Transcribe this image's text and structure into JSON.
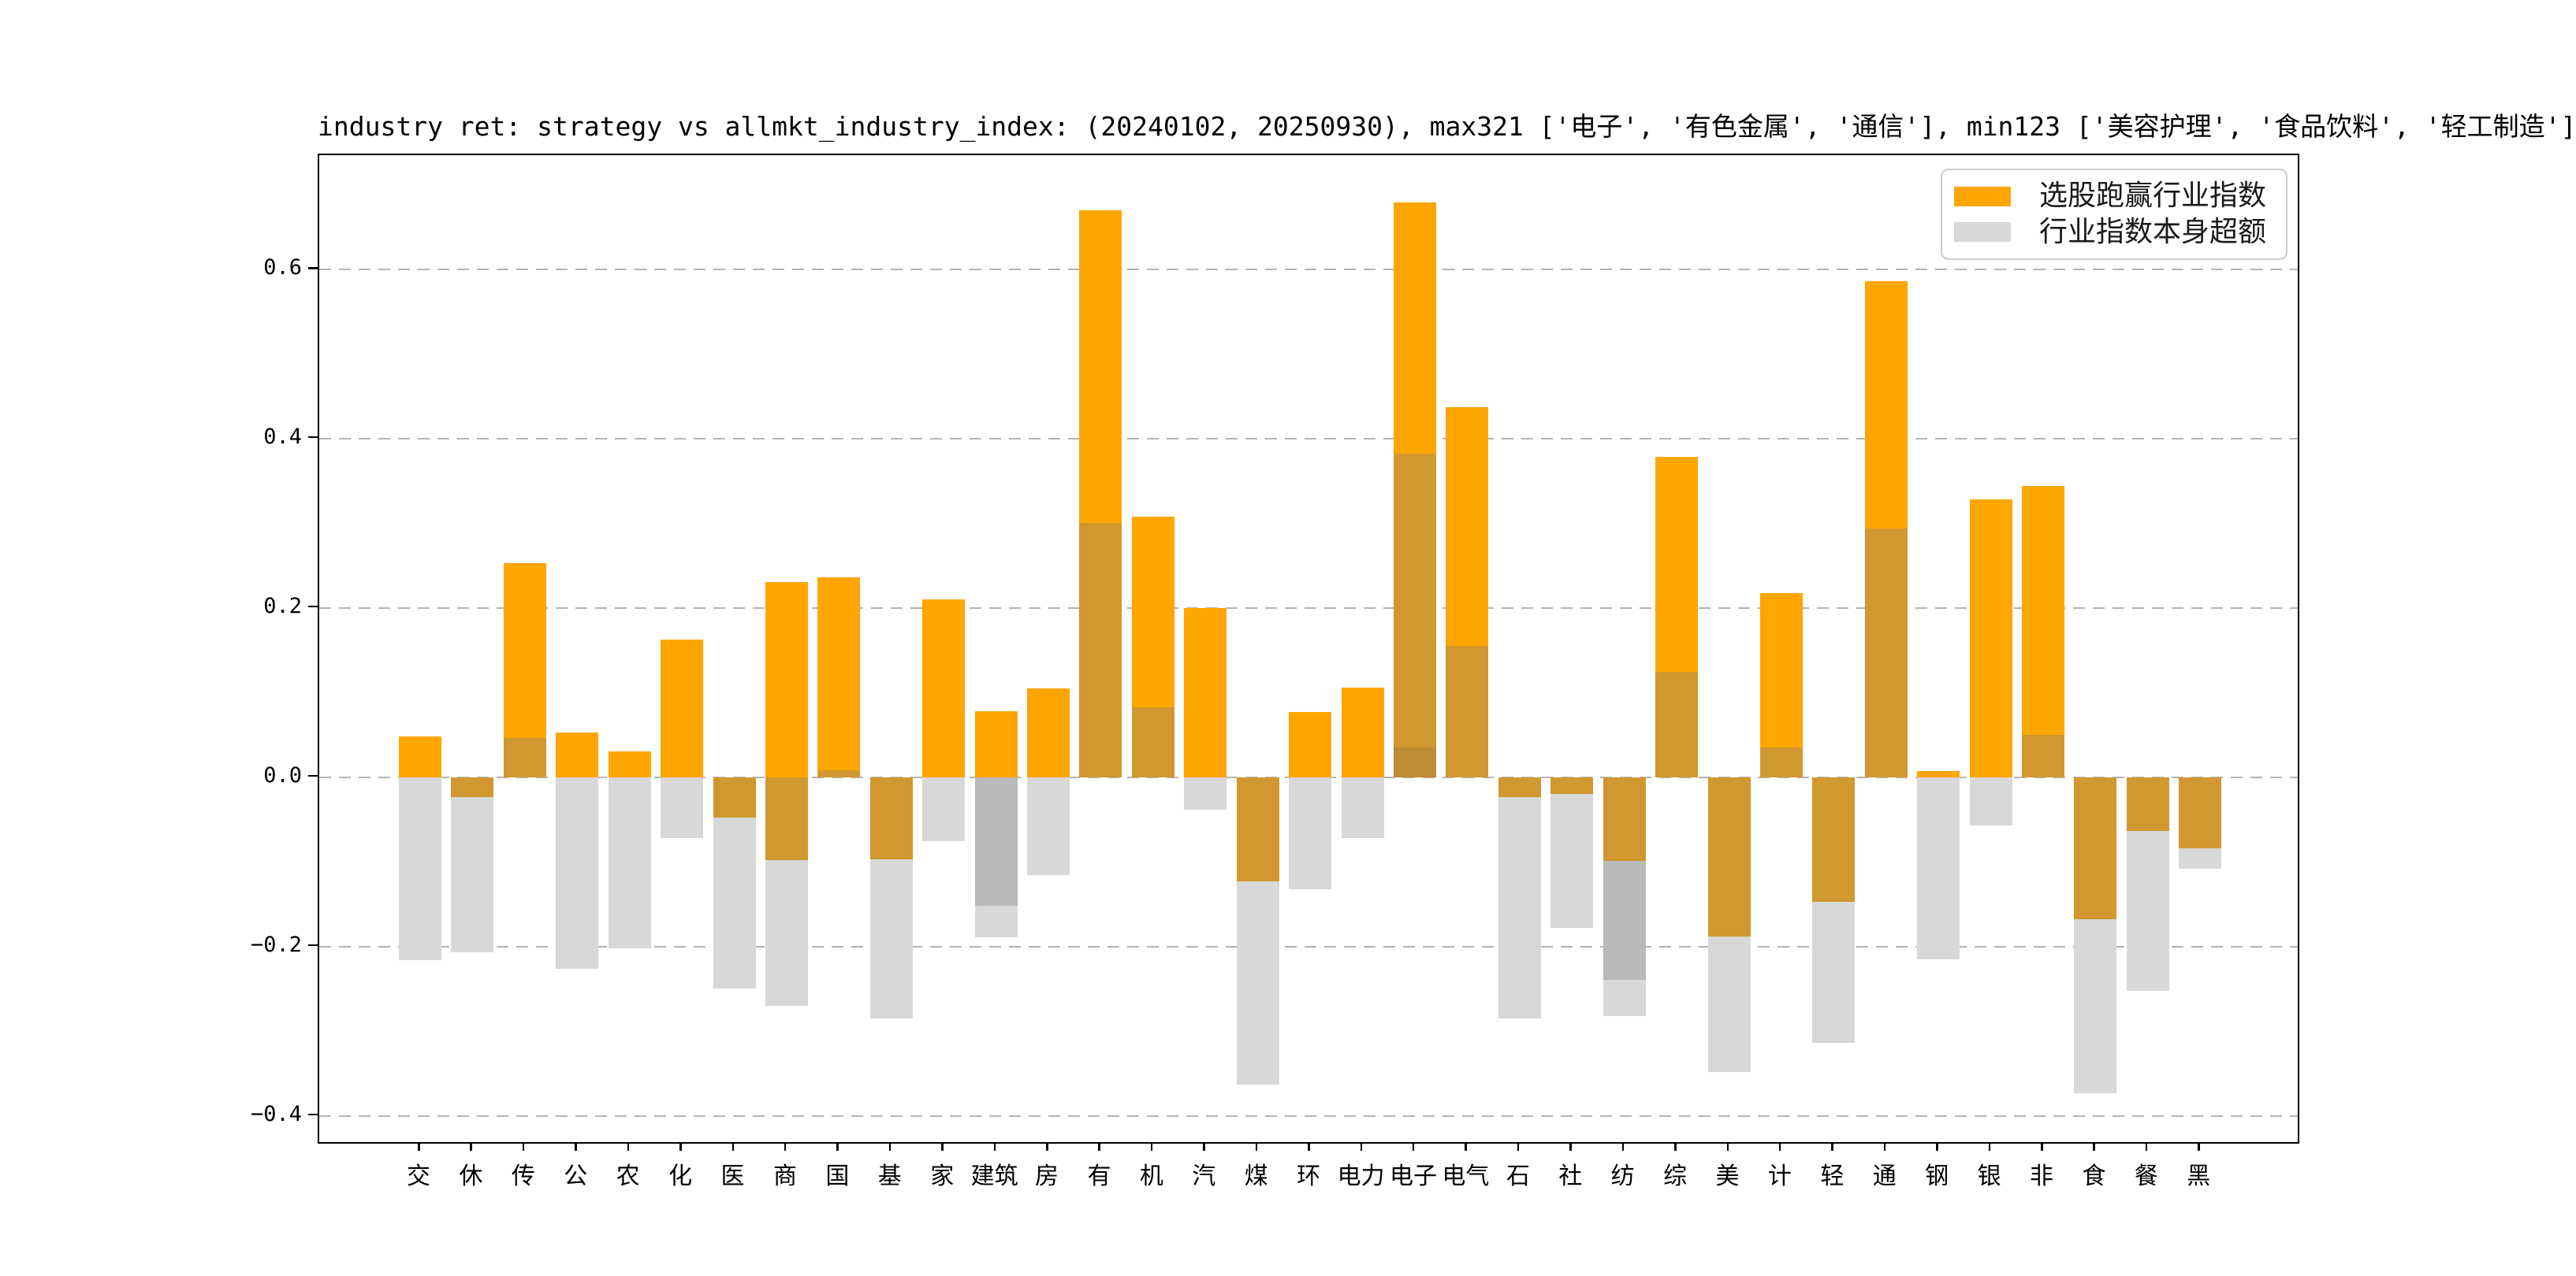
{
  "title": "industry ret: strategy vs allmkt_industry_index: (20240102, 20250930), max321 ['电子', '有色金属', '通信'], min123 ['美容护理', '食品饮料', '轻工制造']",
  "legend": {
    "items": [
      {
        "label": "选股跑赢行业指数",
        "color_key": "orange"
      },
      {
        "label": "行业指数本身超额",
        "color_key": "gray"
      }
    ]
  },
  "colors": {
    "orange": "#FFA500",
    "blend": "#D0982E",
    "blend_dark": "#BE8C33",
    "gray": "#D8D8D8",
    "gray_dark": "#B9B9B9",
    "grid": "#b4b4b4",
    "text": "#000000"
  },
  "axes": {
    "y_ticks": [
      {
        "label": "0.6",
        "value": 0.6
      },
      {
        "label": "0.4",
        "value": 0.4
      },
      {
        "label": "0.2",
        "value": 0.2
      },
      {
        "label": "0.0",
        "value": 0.0
      },
      {
        "label": "−0.2",
        "value": -0.2
      },
      {
        "label": "−0.4",
        "value": -0.4
      }
    ],
    "grid_style": "dashed"
  },
  "chart_data": {
    "type": "bar",
    "title": "industry ret: strategy vs allmkt_industry_index: (20240102, 20250930), max321 ['电子', '有色金属', '通信'], min123 ['美容护理', '食品饮料', '轻工制造']",
    "xlabel": "",
    "ylabel": "",
    "ylim": [
      -0.431,
      0.735
    ],
    "legend_position": "upper right",
    "grid": true,
    "categories": [
      "交",
      "休",
      "传",
      "公",
      "农",
      "化",
      "医",
      "商",
      "国",
      "基",
      "家",
      "建筑",
      "房",
      "有",
      "机",
      "汽",
      "煤",
      "环",
      "电力",
      "电子",
      "电气",
      "石",
      "社",
      "纺",
      "综",
      "美",
      "计",
      "轻",
      "通",
      "钢",
      "银",
      "非",
      "食",
      "餐",
      "黑"
    ],
    "series": [
      {
        "name": "选股跑赢行业指数",
        "values": [
          0.048,
          -0.023,
          0.253,
          0.053,
          0.031,
          0.163,
          -0.048,
          0.231,
          0.236,
          -0.097,
          0.21,
          0.078,
          0.105,
          0.67,
          0.308,
          0.2,
          -0.123,
          0.077,
          0.106,
          0.679,
          0.437,
          -0.023,
          -0.02,
          -0.099,
          0.379,
          -0.188,
          0.218,
          -0.147,
          0.586,
          0.007,
          0.328,
          0.344,
          -0.168,
          -0.063,
          -0.084
        ]
      },
      {
        "name": "行业指数本身超额",
        "values": [
          -0.216,
          -0.207,
          0.046,
          -0.226,
          -0.202,
          -0.072,
          -0.25,
          -0.27,
          0.008,
          -0.285,
          -0.076,
          -0.189,
          -0.116,
          0.3,
          0.083,
          -0.038,
          -0.363,
          -0.132,
          -0.072,
          0.382,
          0.155,
          -0.285,
          -0.178,
          -0.282,
          0.125,
          -0.348,
          0.035,
          -0.314,
          0.294,
          -0.215,
          -0.057,
          0.05,
          -0.373,
          -0.252,
          -0.108
        ]
      }
    ],
    "max3_note": "max321 ['电子', '有色金属', '通信']",
    "min3_note": "min123 ['美容护理', '食品饮料', '轻工制造']",
    "segments": [
      [
        {
          "v0": 0,
          "v1": 0.048,
          "c": "orange"
        },
        {
          "v0": -0.216,
          "v1": 0,
          "c": "gray"
        }
      ],
      [
        {
          "v0": -0.023,
          "v1": 0,
          "c": "blend"
        },
        {
          "v0": -0.207,
          "v1": -0.023,
          "c": "gray"
        }
      ],
      [
        {
          "v0": 0.046,
          "v1": 0.253,
          "c": "orange"
        },
        {
          "v0": 0,
          "v1": 0.046,
          "c": "blend"
        }
      ],
      [
        {
          "v0": 0,
          "v1": 0.053,
          "c": "orange"
        },
        {
          "v0": -0.226,
          "v1": 0,
          "c": "gray"
        }
      ],
      [
        {
          "v0": 0,
          "v1": 0.031,
          "c": "orange"
        },
        {
          "v0": -0.202,
          "v1": 0,
          "c": "gray"
        }
      ],
      [
        {
          "v0": 0,
          "v1": 0.163,
          "c": "orange"
        },
        {
          "v0": -0.072,
          "v1": 0,
          "c": "gray"
        }
      ],
      [
        {
          "v0": -0.048,
          "v1": 0,
          "c": "blend"
        },
        {
          "v0": -0.25,
          "v1": -0.048,
          "c": "gray"
        }
      ],
      [
        {
          "v0": 0,
          "v1": 0.231,
          "c": "orange"
        },
        {
          "v0": -0.098,
          "v1": 0,
          "c": "blend"
        },
        {
          "v0": -0.27,
          "v1": -0.098,
          "c": "gray"
        }
      ],
      [
        {
          "v0": 0.008,
          "v1": 0.236,
          "c": "orange"
        },
        {
          "v0": 0,
          "v1": 0.008,
          "c": "blend"
        }
      ],
      [
        {
          "v0": -0.097,
          "v1": 0,
          "c": "blend"
        },
        {
          "v0": -0.285,
          "v1": -0.097,
          "c": "gray"
        }
      ],
      [
        {
          "v0": 0,
          "v1": 0.21,
          "c": "orange"
        },
        {
          "v0": -0.076,
          "v1": 0,
          "c": "gray"
        }
      ],
      [
        {
          "v0": 0,
          "v1": 0.078,
          "c": "orange"
        },
        {
          "v0": -0.152,
          "v1": 0,
          "c": "gray_dark"
        },
        {
          "v0": -0.189,
          "v1": -0.152,
          "c": "gray"
        }
      ],
      [
        {
          "v0": 0,
          "v1": 0.105,
          "c": "orange"
        },
        {
          "v0": -0.116,
          "v1": 0,
          "c": "gray"
        }
      ],
      [
        {
          "v0": 0.3,
          "v1": 0.67,
          "c": "orange"
        },
        {
          "v0": 0,
          "v1": 0.3,
          "c": "blend"
        }
      ],
      [
        {
          "v0": 0.083,
          "v1": 0.308,
          "c": "orange"
        },
        {
          "v0": 0,
          "v1": 0.083,
          "c": "blend"
        }
      ],
      [
        {
          "v0": 0,
          "v1": 0.2,
          "c": "orange"
        },
        {
          "v0": -0.038,
          "v1": 0,
          "c": "gray"
        }
      ],
      [
        {
          "v0": -0.123,
          "v1": 0,
          "c": "blend"
        },
        {
          "v0": -0.363,
          "v1": -0.123,
          "c": "gray"
        }
      ],
      [
        {
          "v0": 0,
          "v1": 0.077,
          "c": "orange"
        },
        {
          "v0": -0.132,
          "v1": 0,
          "c": "gray"
        }
      ],
      [
        {
          "v0": 0,
          "v1": 0.106,
          "c": "orange"
        },
        {
          "v0": -0.072,
          "v1": 0,
          "c": "gray"
        }
      ],
      [
        {
          "v0": 0.382,
          "v1": 0.679,
          "c": "orange"
        },
        {
          "v0": 0.035,
          "v1": 0.382,
          "c": "blend"
        },
        {
          "v0": 0,
          "v1": 0.035,
          "c": "blend_dark"
        }
      ],
      [
        {
          "v0": 0.155,
          "v1": 0.437,
          "c": "orange"
        },
        {
          "v0": 0,
          "v1": 0.155,
          "c": "blend"
        }
      ],
      [
        {
          "v0": -0.023,
          "v1": 0,
          "c": "blend"
        },
        {
          "v0": -0.285,
          "v1": -0.023,
          "c": "gray"
        }
      ],
      [
        {
          "v0": -0.02,
          "v1": 0,
          "c": "blend"
        },
        {
          "v0": -0.178,
          "v1": -0.02,
          "c": "gray"
        }
      ],
      [
        {
          "v0": -0.099,
          "v1": 0,
          "c": "blend"
        },
        {
          "v0": -0.239,
          "v1": -0.099,
          "c": "gray_dark"
        },
        {
          "v0": -0.282,
          "v1": -0.239,
          "c": "gray"
        }
      ],
      [
        {
          "v0": 0.125,
          "v1": 0.379,
          "c": "orange"
        },
        {
          "v0": 0,
          "v1": 0.125,
          "c": "blend"
        }
      ],
      [
        {
          "v0": -0.188,
          "v1": 0,
          "c": "blend"
        },
        {
          "v0": -0.348,
          "v1": -0.188,
          "c": "gray"
        }
      ],
      [
        {
          "v0": 0.035,
          "v1": 0.218,
          "c": "orange"
        },
        {
          "v0": 0,
          "v1": 0.035,
          "c": "blend"
        }
      ],
      [
        {
          "v0": -0.147,
          "v1": 0,
          "c": "blend"
        },
        {
          "v0": -0.314,
          "v1": -0.147,
          "c": "gray"
        }
      ],
      [
        {
          "v0": 0.294,
          "v1": 0.586,
          "c": "orange"
        },
        {
          "v0": 0,
          "v1": 0.294,
          "c": "blend"
        }
      ],
      [
        {
          "v0": 0,
          "v1": 0.007,
          "c": "orange"
        },
        {
          "v0": -0.215,
          "v1": 0,
          "c": "gray"
        }
      ],
      [
        {
          "v0": 0,
          "v1": 0.328,
          "c": "orange"
        },
        {
          "v0": -0.057,
          "v1": 0,
          "c": "gray"
        }
      ],
      [
        {
          "v0": 0.05,
          "v1": 0.344,
          "c": "orange"
        },
        {
          "v0": 0,
          "v1": 0.05,
          "c": "blend"
        }
      ],
      [
        {
          "v0": -0.168,
          "v1": 0,
          "c": "blend"
        },
        {
          "v0": -0.373,
          "v1": -0.168,
          "c": "gray"
        }
      ],
      [
        {
          "v0": -0.063,
          "v1": 0,
          "c": "blend"
        },
        {
          "v0": -0.252,
          "v1": -0.063,
          "c": "gray"
        }
      ],
      [
        {
          "v0": -0.084,
          "v1": 0,
          "c": "blend"
        },
        {
          "v0": -0.108,
          "v1": -0.084,
          "c": "gray"
        }
      ]
    ]
  }
}
